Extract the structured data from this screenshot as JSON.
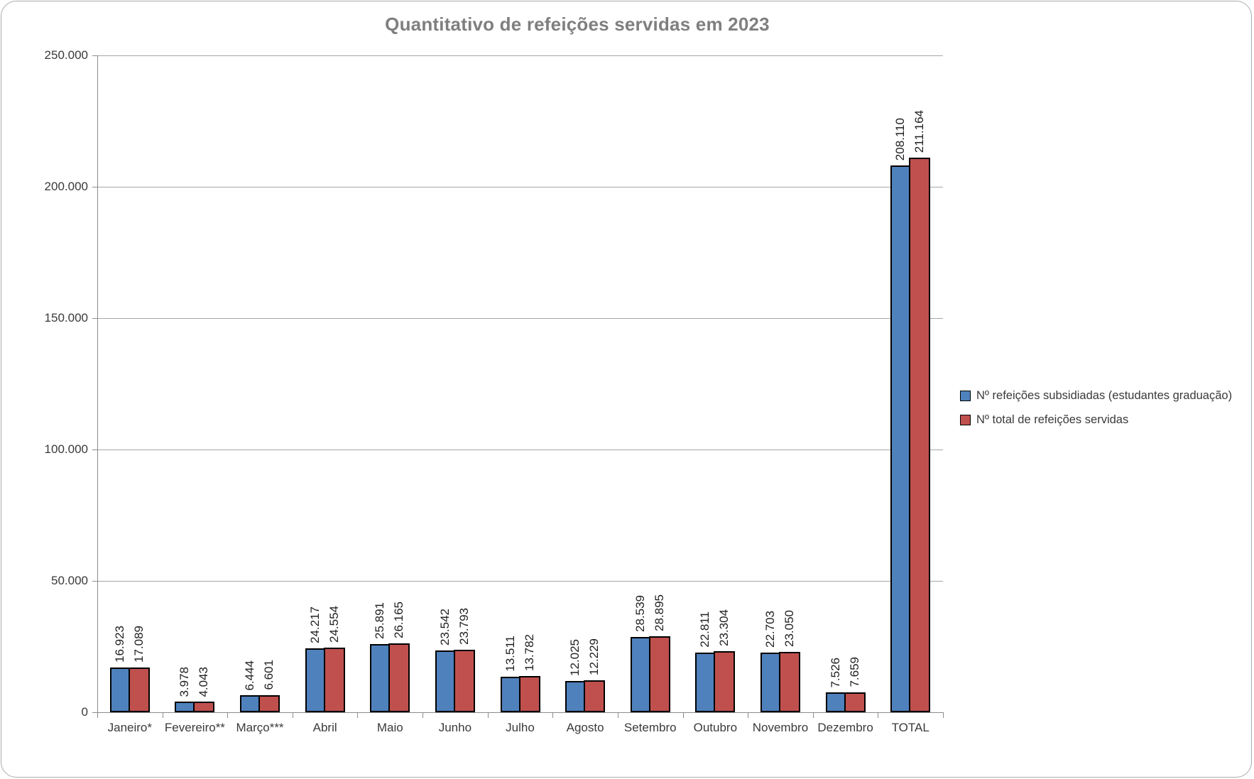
{
  "chart_data": {
    "type": "bar",
    "title": "Quantitativo de refeições servidas em 2023",
    "xlabel": "",
    "ylabel": "",
    "categories": [
      "Janeiro*",
      "Fevereiro**",
      "Março***",
      "Abril",
      "Maio",
      "Junho",
      "Julho",
      "Agosto",
      "Setembro",
      "Outubro",
      "Novembro",
      "Dezembro",
      "TOTAL"
    ],
    "series": [
      {
        "name": "Nº refeições subsidiadas (estudantes graduação)",
        "color": "#4F81BD",
        "values": [
          16923,
          3978,
          6444,
          24217,
          25891,
          23542,
          13511,
          12025,
          28539,
          22811,
          22703,
          7526,
          208110
        ],
        "labels": [
          "16.923",
          "3.978",
          "6.444",
          "24.217",
          "25.891",
          "23.542",
          "13.511",
          "12.025",
          "28.539",
          "22.811",
          "22.703",
          "7.526",
          "208.110"
        ]
      },
      {
        "name": "Nº total de refeições servidas",
        "color": "#C0504D",
        "values": [
          17089,
          4043,
          6601,
          24554,
          26165,
          23793,
          13782,
          12229,
          28895,
          23304,
          23050,
          7659,
          211164
        ],
        "labels": [
          "17.089",
          "4.043",
          "6.601",
          "24.554",
          "26.165",
          "23.793",
          "13.782",
          "12.229",
          "28.895",
          "23.304",
          "23.050",
          "7.659",
          "211.164"
        ]
      }
    ],
    "ylim": [
      0,
      250000
    ],
    "y_ticks": [
      {
        "value": 0,
        "label": "0"
      },
      {
        "value": 50000,
        "label": "50.000"
      },
      {
        "value": 100000,
        "label": "100.000"
      },
      {
        "value": 150000,
        "label": "150.000"
      },
      {
        "value": 200000,
        "label": "200.000"
      },
      {
        "value": 250000,
        "label": "250.000"
      }
    ],
    "grid": true,
    "legend_position": "right",
    "data_label_rotation": 270,
    "bar_border_color": "#000000"
  }
}
